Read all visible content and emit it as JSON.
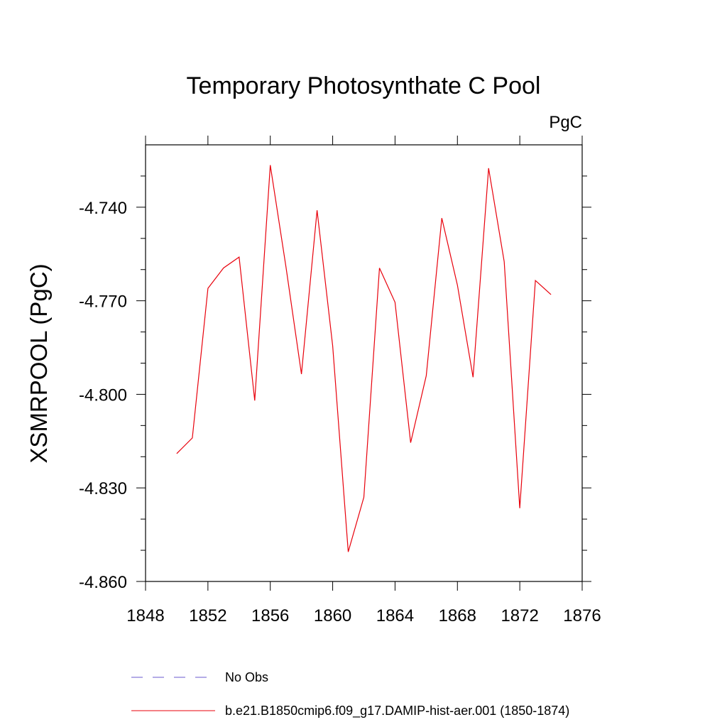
{
  "chart_data": {
    "type": "line",
    "title": "Temporary Photosynthate C Pool",
    "units_label": "PgC",
    "xlabel": "",
    "ylabel": "XSMRPOOL  (PgC)",
    "xlim": [
      1848,
      1876
    ],
    "ylim": [
      -4.86,
      -4.72
    ],
    "x_ticks": [
      1848,
      1852,
      1856,
      1860,
      1864,
      1868,
      1872,
      1876
    ],
    "x_tick_labels": [
      "1848",
      "1852",
      "1856",
      "1860",
      "1864",
      "1868",
      "1872",
      "1876"
    ],
    "y_ticks": [
      -4.74,
      -4.77,
      -4.8,
      -4.83,
      -4.86
    ],
    "y_tick_labels": [
      "-4.740",
      "-4.770",
      "-4.800",
      "-4.830",
      "-4.860"
    ],
    "grid": false,
    "legend_position": "bottom",
    "series": [
      {
        "name": "b.e21.B1850cmip6.f09_g17.DAMIP-hist-aer.001 (1850-1874)",
        "color": "#e8000b",
        "style": "solid",
        "x": [
          1850,
          1851,
          1852,
          1853,
          1854,
          1855,
          1856,
          1857,
          1858,
          1859,
          1860,
          1861,
          1862,
          1863,
          1864,
          1865,
          1866,
          1867,
          1868,
          1869,
          1870,
          1871,
          1872,
          1873,
          1874
        ],
        "y": [
          -4.819,
          -4.814,
          -4.766,
          -4.7595,
          -4.756,
          -4.802,
          -4.7265,
          -4.759,
          -4.7935,
          -4.741,
          -4.7845,
          -4.8505,
          -4.833,
          -4.7595,
          -4.7705,
          -4.8155,
          -4.794,
          -4.7435,
          -4.765,
          -4.7945,
          -4.7275,
          -4.7575,
          -4.8365,
          -4.7635,
          -4.768
        ]
      },
      {
        "name": "No Obs",
        "color": "#6a5acd",
        "style": "dashed",
        "x": [],
        "y": []
      }
    ]
  }
}
